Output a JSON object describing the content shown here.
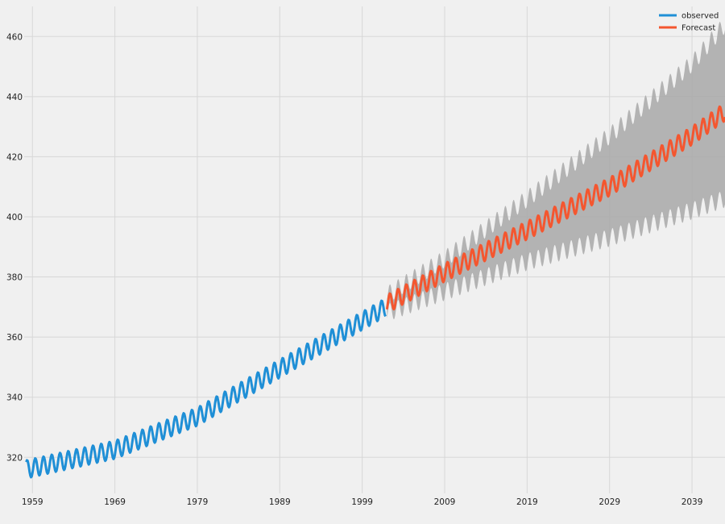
{
  "chart_data": {
    "type": "line",
    "title": "",
    "xlabel": "",
    "ylabel": "",
    "xlim": [
      1958.0,
      2043.0
    ],
    "ylim": [
      308,
      470
    ],
    "xticks": [
      "1959",
      "1969",
      "1979",
      "1989",
      "1999",
      "2009",
      "2019",
      "2029",
      "2039"
    ],
    "yticks": [
      "320",
      "340",
      "360",
      "380",
      "400",
      "420",
      "440",
      "460"
    ],
    "grid": true,
    "legend_position": "top-right",
    "seasonal_amplitude": 3.0,
    "series": [
      {
        "name": "observed",
        "color": "#1f8fd6",
        "start_year": 1958.25,
        "end_year": 2001.9,
        "trend": [
          [
            1958.25,
            316
          ],
          [
            1969,
            322.5
          ],
          [
            1979,
            333.5
          ],
          [
            1989,
            349.5
          ],
          [
            2001.9,
            370
          ]
        ]
      },
      {
        "name": "Forecast",
        "color": "#f4562f",
        "start_year": 2002.0,
        "end_year": 2043.0,
        "trend": [
          [
            2002,
            371
          ],
          [
            2009,
            381.5
          ],
          [
            2019,
            395.5
          ],
          [
            2029,
            410
          ],
          [
            2039,
            427
          ],
          [
            2043,
            435
          ]
        ]
      }
    ],
    "confidence_band": {
      "color": "#a8a8a8",
      "lower": [
        [
          2002,
          368
        ],
        [
          2009,
          375
        ],
        [
          2019,
          385
        ],
        [
          2029,
          393
        ],
        [
          2039,
          402
        ],
        [
          2043,
          406
        ]
      ],
      "upper": [
        [
          2002,
          374
        ],
        [
          2009,
          386
        ],
        [
          2019,
          406
        ],
        [
          2029,
          427
        ],
        [
          2039,
          451
        ],
        [
          2043,
          464
        ]
      ]
    }
  }
}
